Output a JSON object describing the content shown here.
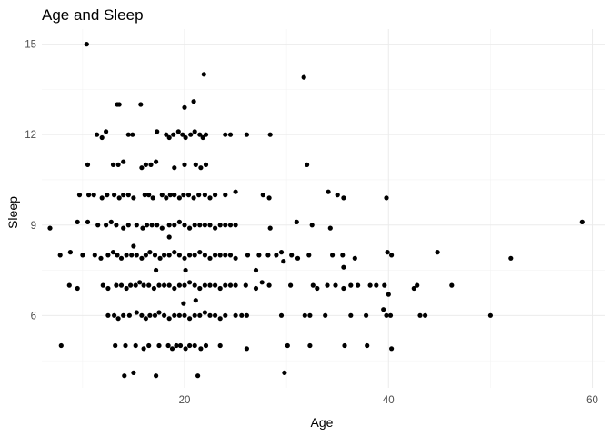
{
  "chart_data": {
    "type": "scatter",
    "title": "Age and Sleep",
    "xlabel": "Age",
    "ylabel": "Sleep",
    "xlim": [
      6,
      61.2
    ],
    "ylim": [
      3.6,
      15.5
    ],
    "x_ticks": [
      20,
      40,
      60
    ],
    "x_minor_ticks": [
      10,
      30,
      50
    ],
    "y_ticks": [
      6,
      9,
      12,
      15
    ],
    "y_minor_ticks": [
      4.5,
      7.5,
      10.5,
      13.5
    ],
    "grid": true,
    "point_color": "#000000",
    "points": [
      [
        10.4,
        15.0
      ],
      [
        21.9,
        14.0
      ],
      [
        31.7,
        13.9
      ],
      [
        15.7,
        13.0
      ],
      [
        13.4,
        13.0
      ],
      [
        13.6,
        13.0
      ],
      [
        20.9,
        13.1
      ],
      [
        20.0,
        12.9
      ],
      [
        11.4,
        12.0
      ],
      [
        11.9,
        11.9
      ],
      [
        12.3,
        12.1
      ],
      [
        14.5,
        12.0
      ],
      [
        14.9,
        12.0
      ],
      [
        17.3,
        12.1
      ],
      [
        18.2,
        12.0
      ],
      [
        18.5,
        11.9
      ],
      [
        18.9,
        12.0
      ],
      [
        19.4,
        12.1
      ],
      [
        19.8,
        12.0
      ],
      [
        20.1,
        11.9
      ],
      [
        20.6,
        12.0
      ],
      [
        21.0,
        12.1
      ],
      [
        21.5,
        12.0
      ],
      [
        21.8,
        11.9
      ],
      [
        22.1,
        12.0
      ],
      [
        24.0,
        12.0
      ],
      [
        24.5,
        12.0
      ],
      [
        26.1,
        12.0
      ],
      [
        28.4,
        12.0
      ],
      [
        10.5,
        11.0
      ],
      [
        13.0,
        11.0
      ],
      [
        13.5,
        11.0
      ],
      [
        14.0,
        11.1
      ],
      [
        15.8,
        10.9
      ],
      [
        16.2,
        11.0
      ],
      [
        16.7,
        11.0
      ],
      [
        17.2,
        11.1
      ],
      [
        19.0,
        10.9
      ],
      [
        20.0,
        11.0
      ],
      [
        21.1,
        11.0
      ],
      [
        21.6,
        10.9
      ],
      [
        22.1,
        11.0
      ],
      [
        32.0,
        11.0
      ],
      [
        9.7,
        10.0
      ],
      [
        10.6,
        10.0
      ],
      [
        11.1,
        10.0
      ],
      [
        11.9,
        9.9
      ],
      [
        12.4,
        10.0
      ],
      [
        13.1,
        10.0
      ],
      [
        13.6,
        9.9
      ],
      [
        14.0,
        10.0
      ],
      [
        14.5,
        10.0
      ],
      [
        15.0,
        9.9
      ],
      [
        16.1,
        10.0
      ],
      [
        16.5,
        10.0
      ],
      [
        16.9,
        9.9
      ],
      [
        17.8,
        10.0
      ],
      [
        18.2,
        9.9
      ],
      [
        18.6,
        10.0
      ],
      [
        19.0,
        10.0
      ],
      [
        19.5,
        9.9
      ],
      [
        19.9,
        10.0
      ],
      [
        20.4,
        10.0
      ],
      [
        20.9,
        9.9
      ],
      [
        21.4,
        10.0
      ],
      [
        22.0,
        10.0
      ],
      [
        22.5,
        9.9
      ],
      [
        23.0,
        10.0
      ],
      [
        24.0,
        10.0
      ],
      [
        25.0,
        10.1
      ],
      [
        27.7,
        10.0
      ],
      [
        28.3,
        9.9
      ],
      [
        34.1,
        10.1
      ],
      [
        35.0,
        10.0
      ],
      [
        35.6,
        9.9
      ],
      [
        39.8,
        9.9
      ],
      [
        6.8,
        8.9
      ],
      [
        9.5,
        9.1
      ],
      [
        10.5,
        9.1
      ],
      [
        11.5,
        9.0
      ],
      [
        12.3,
        9.0
      ],
      [
        12.8,
        9.1
      ],
      [
        13.3,
        9.0
      ],
      [
        14.0,
        8.9
      ],
      [
        14.5,
        9.0
      ],
      [
        15.3,
        9.0
      ],
      [
        15.9,
        8.9
      ],
      [
        16.3,
        9.0
      ],
      [
        16.8,
        9.0
      ],
      [
        17.3,
        9.0
      ],
      [
        17.8,
        8.9
      ],
      [
        18.5,
        9.0
      ],
      [
        19.0,
        9.0
      ],
      [
        19.5,
        9.1
      ],
      [
        20.0,
        9.0
      ],
      [
        20.5,
        8.9
      ],
      [
        21.0,
        9.0
      ],
      [
        21.5,
        9.0
      ],
      [
        22.0,
        9.0
      ],
      [
        22.5,
        9.0
      ],
      [
        23.0,
        8.9
      ],
      [
        23.5,
        9.0
      ],
      [
        24.0,
        9.0
      ],
      [
        24.5,
        9.0
      ],
      [
        25.0,
        9.0
      ],
      [
        28.4,
        8.9
      ],
      [
        31.0,
        9.1
      ],
      [
        32.5,
        9.0
      ],
      [
        34.3,
        8.9
      ],
      [
        59.0,
        9.1
      ],
      [
        18.5,
        8.6
      ],
      [
        15.0,
        8.3
      ],
      [
        7.8,
        8.0
      ],
      [
        8.8,
        8.1
      ],
      [
        10.0,
        8.0
      ],
      [
        11.2,
        8.0
      ],
      [
        11.8,
        7.9
      ],
      [
        12.5,
        8.0
      ],
      [
        13.0,
        8.1
      ],
      [
        13.4,
        8.0
      ],
      [
        13.8,
        7.9
      ],
      [
        14.3,
        8.0
      ],
      [
        14.8,
        8.0
      ],
      [
        15.3,
        8.0
      ],
      [
        15.8,
        7.9
      ],
      [
        16.2,
        8.0
      ],
      [
        16.6,
        8.1
      ],
      [
        17.1,
        8.0
      ],
      [
        17.6,
        7.9
      ],
      [
        18.0,
        8.0
      ],
      [
        18.5,
        8.0
      ],
      [
        19.0,
        8.1
      ],
      [
        19.5,
        8.0
      ],
      [
        20.0,
        7.9
      ],
      [
        20.5,
        8.0
      ],
      [
        21.0,
        8.0
      ],
      [
        21.5,
        8.1
      ],
      [
        22.0,
        8.0
      ],
      [
        22.5,
        7.9
      ],
      [
        23.0,
        8.0
      ],
      [
        23.5,
        8.0
      ],
      [
        24.0,
        8.0
      ],
      [
        24.5,
        8.0
      ],
      [
        25.0,
        7.9
      ],
      [
        26.2,
        8.0
      ],
      [
        27.3,
        8.0
      ],
      [
        28.2,
        8.0
      ],
      [
        29.0,
        8.0
      ],
      [
        29.5,
        8.1
      ],
      [
        30.5,
        8.0
      ],
      [
        31.1,
        7.9
      ],
      [
        32.2,
        8.0
      ],
      [
        34.5,
        8.0
      ],
      [
        35.5,
        8.0
      ],
      [
        36.7,
        7.9
      ],
      [
        39.9,
        8.1
      ],
      [
        40.3,
        8.0
      ],
      [
        44.8,
        8.1
      ],
      [
        52.0,
        7.9
      ],
      [
        29.7,
        7.8
      ],
      [
        17.2,
        7.5
      ],
      [
        20.1,
        7.5
      ],
      [
        27.0,
        7.5
      ],
      [
        35.6,
        7.6
      ],
      [
        8.7,
        7.0
      ],
      [
        9.5,
        6.9
      ],
      [
        12.0,
        7.0
      ],
      [
        12.5,
        6.9
      ],
      [
        13.3,
        7.0
      ],
      [
        13.8,
        7.0
      ],
      [
        14.3,
        6.9
      ],
      [
        14.7,
        7.0
      ],
      [
        15.2,
        7.0
      ],
      [
        15.6,
        7.1
      ],
      [
        16.0,
        7.0
      ],
      [
        16.5,
        7.0
      ],
      [
        17.0,
        6.9
      ],
      [
        17.5,
        7.0
      ],
      [
        18.0,
        7.0
      ],
      [
        18.5,
        7.0
      ],
      [
        19.0,
        6.9
      ],
      [
        19.5,
        7.0
      ],
      [
        20.0,
        7.0
      ],
      [
        20.5,
        7.1
      ],
      [
        21.0,
        7.0
      ],
      [
        21.5,
        6.9
      ],
      [
        22.0,
        7.0
      ],
      [
        22.5,
        7.0
      ],
      [
        23.0,
        7.0
      ],
      [
        23.5,
        6.9
      ],
      [
        24.0,
        7.0
      ],
      [
        24.5,
        7.0
      ],
      [
        25.0,
        7.0
      ],
      [
        26.0,
        7.0
      ],
      [
        27.0,
        6.9
      ],
      [
        27.6,
        7.1
      ],
      [
        28.3,
        7.0
      ],
      [
        30.4,
        7.0
      ],
      [
        32.6,
        7.0
      ],
      [
        33.0,
        6.9
      ],
      [
        34.0,
        7.0
      ],
      [
        34.8,
        7.0
      ],
      [
        35.6,
        6.9
      ],
      [
        36.3,
        7.0
      ],
      [
        37.0,
        7.0
      ],
      [
        38.2,
        7.0
      ],
      [
        38.8,
        7.0
      ],
      [
        39.6,
        7.0
      ],
      [
        42.5,
        6.9
      ],
      [
        42.8,
        7.0
      ],
      [
        46.2,
        7.0
      ],
      [
        40.0,
        6.7
      ],
      [
        19.9,
        6.4
      ],
      [
        21.1,
        6.5
      ],
      [
        39.5,
        6.2
      ],
      [
        12.5,
        6.0
      ],
      [
        13.1,
        6.0
      ],
      [
        13.5,
        5.9
      ],
      [
        14.0,
        6.0
      ],
      [
        14.6,
        6.0
      ],
      [
        15.3,
        6.1
      ],
      [
        15.8,
        6.0
      ],
      [
        16.2,
        5.9
      ],
      [
        16.6,
        6.0
      ],
      [
        17.1,
        6.0
      ],
      [
        17.5,
        6.1
      ],
      [
        18.0,
        6.0
      ],
      [
        18.5,
        5.9
      ],
      [
        19.0,
        6.0
      ],
      [
        19.5,
        6.0
      ],
      [
        20.0,
        6.0
      ],
      [
        20.5,
        5.9
      ],
      [
        21.0,
        6.0
      ],
      [
        21.5,
        6.0
      ],
      [
        22.0,
        6.1
      ],
      [
        22.5,
        6.0
      ],
      [
        23.0,
        6.0
      ],
      [
        23.5,
        5.9
      ],
      [
        24.0,
        6.0
      ],
      [
        25.0,
        6.0
      ],
      [
        25.6,
        6.0
      ],
      [
        26.1,
        6.0
      ],
      [
        29.5,
        6.0
      ],
      [
        31.8,
        6.0
      ],
      [
        32.3,
        6.0
      ],
      [
        33.8,
        6.0
      ],
      [
        36.3,
        6.0
      ],
      [
        37.8,
        6.0
      ],
      [
        39.8,
        6.0
      ],
      [
        40.2,
        6.0
      ],
      [
        43.1,
        6.0
      ],
      [
        43.6,
        6.0
      ],
      [
        50.0,
        6.0
      ],
      [
        7.9,
        5.0
      ],
      [
        13.2,
        5.0
      ],
      [
        14.2,
        5.0
      ],
      [
        15.2,
        5.0
      ],
      [
        16.0,
        4.9
      ],
      [
        16.5,
        5.0
      ],
      [
        17.5,
        5.0
      ],
      [
        18.4,
        5.0
      ],
      [
        18.8,
        4.9
      ],
      [
        19.2,
        5.0
      ],
      [
        19.6,
        5.0
      ],
      [
        20.1,
        4.9
      ],
      [
        20.5,
        5.0
      ],
      [
        21.0,
        5.0
      ],
      [
        21.6,
        4.9
      ],
      [
        22.1,
        5.0
      ],
      [
        23.5,
        5.0
      ],
      [
        26.1,
        4.9
      ],
      [
        30.1,
        5.0
      ],
      [
        32.3,
        5.0
      ],
      [
        35.7,
        5.0
      ],
      [
        37.9,
        5.0
      ],
      [
        40.3,
        4.9
      ],
      [
        14.1,
        4.0
      ],
      [
        15.0,
        4.1
      ],
      [
        17.2,
        4.0
      ],
      [
        21.3,
        4.0
      ],
      [
        29.8,
        4.1
      ]
    ]
  }
}
